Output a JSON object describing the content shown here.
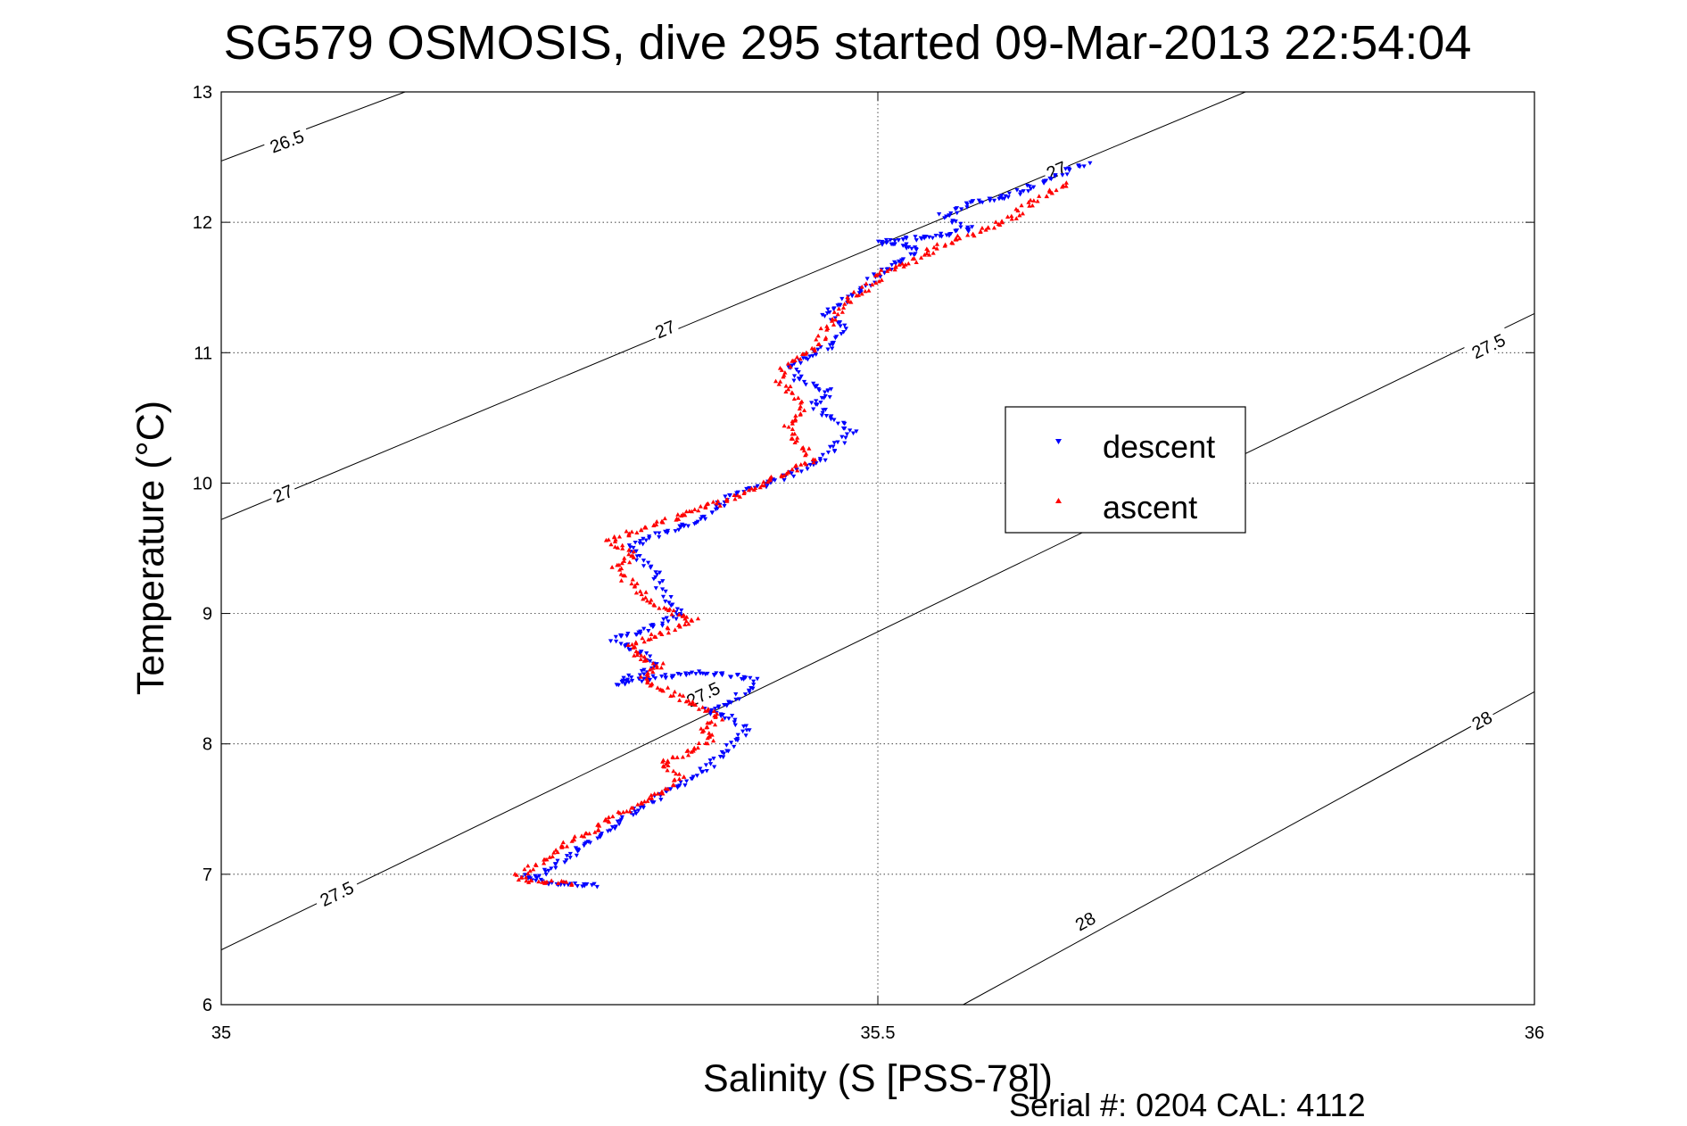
{
  "chart_data": {
    "type": "scatter",
    "title": "SG579 OSMOSIS, dive 295 started 09-Mar-2013 22:54:04",
    "xlabel": "Salinity (S [PSS-78])",
    "ylabel": "Temperature (°C)",
    "xlim": [
      35,
      36
    ],
    "ylim": [
      6,
      13
    ],
    "xticks": [
      "35",
      "35.5",
      "36"
    ],
    "yticks": [
      "6",
      "7",
      "8",
      "9",
      "10",
      "11",
      "12",
      "13"
    ],
    "grid": true,
    "footer": "Serial #: 0204  CAL: 4112",
    "legend": {
      "placement": "center-right",
      "entries": [
        "descent",
        "ascent"
      ]
    },
    "colors": {
      "descent": "#0000ff",
      "ascent": "#ff0000",
      "contour": "#000000"
    },
    "contours": [
      {
        "label": "26.5",
        "points": [
          [
            35.0,
            12.47
          ],
          [
            35.14,
            13.0
          ]
        ]
      },
      {
        "label": "27",
        "points": [
          [
            35.0,
            9.72
          ],
          [
            35.78,
            13.0
          ]
        ]
      },
      {
        "label": "27.5",
        "points": [
          [
            35.0,
            6.42
          ],
          [
            36.0,
            11.3
          ]
        ]
      },
      {
        "label": "28",
        "points": [
          [
            35.565,
            6.0
          ],
          [
            36.0,
            8.4
          ]
        ]
      }
    ],
    "contour_labels": [
      {
        "text": "26.5",
        "x": 35.05,
        "y": 12.62
      },
      {
        "text": "27",
        "x": 35.047,
        "y": 9.92
      },
      {
        "text": "27",
        "x": 35.338,
        "y": 11.18
      },
      {
        "text": "27",
        "x": 35.636,
        "y": 12.4
      },
      {
        "text": "27.5",
        "x": 35.088,
        "y": 6.85
      },
      {
        "text": "27.5",
        "x": 35.367,
        "y": 8.38
      },
      {
        "text": "27.5",
        "x": 35.965,
        "y": 11.05
      },
      {
        "text": "28",
        "x": 35.658,
        "y": 6.64
      },
      {
        "text": "28",
        "x": 35.96,
        "y": 8.18
      }
    ],
    "series": [
      {
        "name": "descent",
        "marker": "down-triangle",
        "path": [
          [
            35.285,
            6.91
          ],
          [
            35.25,
            6.93
          ],
          [
            35.24,
            6.96
          ],
          [
            35.23,
            6.98
          ],
          [
            35.245,
            7.0
          ],
          [
            35.26,
            7.1
          ],
          [
            35.275,
            7.2
          ],
          [
            35.29,
            7.3
          ],
          [
            35.31,
            7.45
          ],
          [
            35.335,
            7.6
          ],
          [
            35.36,
            7.75
          ],
          [
            35.38,
            7.9
          ],
          [
            35.39,
            8.0
          ],
          [
            35.4,
            8.1
          ],
          [
            35.39,
            8.2
          ],
          [
            35.37,
            8.25
          ],
          [
            35.385,
            8.3
          ],
          [
            35.4,
            8.4
          ],
          [
            35.405,
            8.5
          ],
          [
            35.37,
            8.55
          ],
          [
            35.34,
            8.52
          ],
          [
            35.31,
            8.48
          ],
          [
            35.3,
            8.45
          ],
          [
            35.33,
            8.6
          ],
          [
            35.32,
            8.7
          ],
          [
            35.3,
            8.8
          ],
          [
            35.33,
            8.9
          ],
          [
            35.35,
            9.0
          ],
          [
            35.34,
            9.1
          ],
          [
            35.335,
            9.2
          ],
          [
            35.33,
            9.3
          ],
          [
            35.32,
            9.4
          ],
          [
            35.31,
            9.5
          ],
          [
            35.33,
            9.6
          ],
          [
            35.36,
            9.7
          ],
          [
            35.375,
            9.8
          ],
          [
            35.385,
            9.88
          ],
          [
            35.4,
            9.95
          ],
          [
            35.42,
            10.0
          ],
          [
            35.44,
            10.1
          ],
          [
            35.46,
            10.2
          ],
          [
            35.47,
            10.3
          ],
          [
            35.48,
            10.4
          ],
          [
            35.465,
            10.5
          ],
          [
            35.45,
            10.6
          ],
          [
            35.465,
            10.7
          ],
          [
            35.44,
            10.8
          ],
          [
            35.43,
            10.9
          ],
          [
            35.455,
            11.0
          ],
          [
            35.47,
            11.1
          ],
          [
            35.475,
            11.2
          ],
          [
            35.46,
            11.3
          ],
          [
            35.475,
            11.4
          ],
          [
            35.49,
            11.5
          ],
          [
            35.5,
            11.6
          ],
          [
            35.52,
            11.7
          ],
          [
            35.53,
            11.8
          ],
          [
            35.5,
            11.85
          ],
          [
            35.55,
            11.9
          ],
          [
            35.57,
            11.95
          ],
          [
            35.55,
            12.05
          ],
          [
            35.57,
            12.15
          ],
          [
            35.6,
            12.2
          ],
          [
            35.625,
            12.3
          ],
          [
            35.645,
            12.4
          ],
          [
            35.66,
            12.45
          ]
        ]
      },
      {
        "name": "ascent",
        "marker": "up-triangle",
        "path": [
          [
            35.265,
            6.93
          ],
          [
            35.235,
            6.95
          ],
          [
            35.225,
            6.98
          ],
          [
            35.235,
            7.05
          ],
          [
            35.25,
            7.15
          ],
          [
            35.265,
            7.25
          ],
          [
            35.285,
            7.35
          ],
          [
            35.3,
            7.45
          ],
          [
            35.32,
            7.55
          ],
          [
            35.34,
            7.65
          ],
          [
            35.35,
            7.75
          ],
          [
            35.335,
            7.85
          ],
          [
            35.36,
            7.95
          ],
          [
            35.375,
            8.05
          ],
          [
            35.365,
            8.12
          ],
          [
            35.38,
            8.2
          ],
          [
            35.36,
            8.3
          ],
          [
            35.34,
            8.4
          ],
          [
            35.32,
            8.5
          ],
          [
            35.335,
            8.6
          ],
          [
            35.315,
            8.68
          ],
          [
            35.31,
            8.75
          ],
          [
            35.335,
            8.85
          ],
          [
            35.36,
            8.95
          ],
          [
            35.335,
            9.05
          ],
          [
            35.32,
            9.15
          ],
          [
            35.31,
            9.25
          ],
          [
            35.3,
            9.35
          ],
          [
            35.315,
            9.45
          ],
          [
            35.295,
            9.55
          ],
          [
            35.32,
            9.65
          ],
          [
            35.35,
            9.75
          ],
          [
            35.37,
            9.82
          ],
          [
            35.39,
            9.88
          ],
          [
            35.41,
            9.98
          ],
          [
            35.43,
            10.08
          ],
          [
            35.45,
            10.18
          ],
          [
            35.44,
            10.3
          ],
          [
            35.43,
            10.42
          ],
          [
            35.445,
            10.55
          ],
          [
            35.44,
            10.65
          ],
          [
            35.425,
            10.78
          ],
          [
            35.43,
            10.9
          ],
          [
            35.455,
            11.05
          ],
          [
            35.46,
            11.18
          ],
          [
            35.47,
            11.3
          ],
          [
            35.48,
            11.42
          ],
          [
            35.495,
            11.52
          ],
          [
            35.505,
            11.62
          ],
          [
            35.53,
            11.72
          ],
          [
            35.545,
            11.82
          ],
          [
            35.575,
            11.92
          ],
          [
            35.595,
            12.0
          ],
          [
            35.61,
            12.1
          ],
          [
            35.625,
            12.2
          ],
          [
            35.645,
            12.3
          ]
        ]
      }
    ]
  }
}
